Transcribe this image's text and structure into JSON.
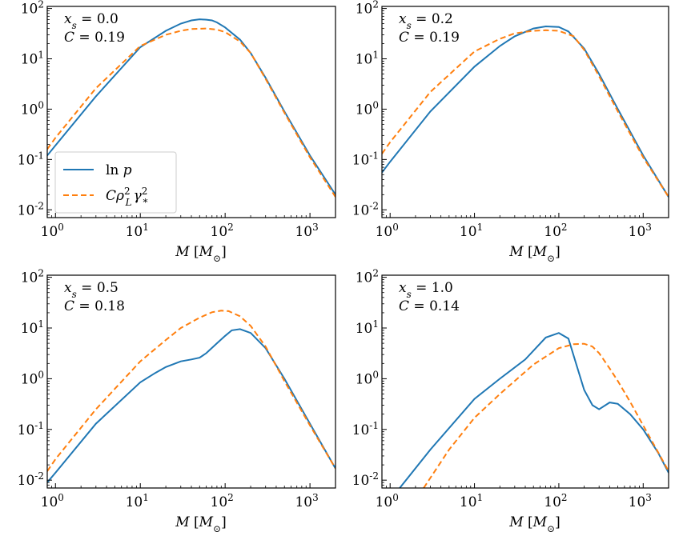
{
  "figure": {
    "legend": {
      "entries": [
        {
          "label": "ln p",
          "color": "#1f77b4",
          "style": "solid"
        },
        {
          "label": "Cρ_L²γ_*²",
          "color": "#ff7f0e",
          "style": "dashed"
        }
      ]
    }
  },
  "chart_data": [
    {
      "type": "line",
      "x_scale": "log",
      "y_scale": "log",
      "xlim": [
        0.8,
        2000
      ],
      "ylim": [
        0.007,
        110
      ],
      "xlabel": "M [M⊙]",
      "xticks": [
        {
          "v": 1,
          "l": "10",
          "e": "0"
        },
        {
          "v": 10,
          "l": "10",
          "e": "1"
        },
        {
          "v": 100,
          "l": "10",
          "e": "2"
        },
        {
          "v": 1000,
          "l": "10",
          "e": "3"
        }
      ],
      "yticks": [
        {
          "v": 0.01,
          "l": "10",
          "e": "-2"
        },
        {
          "v": 0.1,
          "l": "10",
          "e": "-1"
        },
        {
          "v": 1,
          "l": "10",
          "e": "0"
        },
        {
          "v": 10,
          "l": "10",
          "e": "1"
        },
        {
          "v": 100,
          "l": "10",
          "e": "2"
        }
      ],
      "annotations": [
        {
          "var": "x",
          "sub": "s",
          "text": " = 0.0"
        },
        {
          "var": "C",
          "sub": "",
          "text": " = 0.19"
        }
      ],
      "legend": "lower-left",
      "series": [
        {
          "name": "ln p",
          "color": "#1f77b4",
          "dash": false,
          "x": [
            0.8,
            1,
            3,
            10,
            20,
            30,
            40,
            50,
            60,
            70,
            80,
            100,
            150,
            200,
            300,
            500,
            1000,
            2000
          ],
          "y": [
            0.12,
            0.19,
            1.8,
            17,
            36,
            50,
            58,
            61,
            60,
            58,
            53,
            42,
            24,
            13,
            4.2,
            0.9,
            0.12,
            0.02
          ]
        },
        {
          "name": "Cρ_L²γ_*²",
          "color": "#ff7f0e",
          "dash": true,
          "x": [
            0.8,
            1,
            3,
            10,
            20,
            30,
            40,
            60,
            80,
            100,
            150,
            200,
            300,
            500,
            1000,
            2000
          ],
          "y": [
            0.16,
            0.27,
            2.6,
            18,
            30,
            36,
            39,
            40,
            38,
            34,
            22,
            13,
            4,
            0.85,
            0.11,
            0.018
          ]
        }
      ]
    },
    {
      "type": "line",
      "x_scale": "log",
      "y_scale": "log",
      "xlim": [
        0.8,
        2000
      ],
      "ylim": [
        0.007,
        110
      ],
      "xlabel": "M [M⊙]",
      "xticks": [
        {
          "v": 1,
          "l": "10",
          "e": "0"
        },
        {
          "v": 10,
          "l": "10",
          "e": "1"
        },
        {
          "v": 100,
          "l": "10",
          "e": "2"
        },
        {
          "v": 1000,
          "l": "10",
          "e": "3"
        }
      ],
      "yticks": [
        {
          "v": 0.01,
          "l": "10",
          "e": "-2"
        },
        {
          "v": 0.1,
          "l": "10",
          "e": "-1"
        },
        {
          "v": 1,
          "l": "10",
          "e": "0"
        },
        {
          "v": 10,
          "l": "10",
          "e": "1"
        },
        {
          "v": 100,
          "l": "10",
          "e": "2"
        }
      ],
      "annotations": [
        {
          "var": "x",
          "sub": "s",
          "text": " = 0.2"
        },
        {
          "var": "C",
          "sub": "",
          "text": " = 0.19"
        }
      ],
      "legend": "none",
      "series": [
        {
          "name": "ln p",
          "color": "#1f77b4",
          "dash": false,
          "x": [
            0.8,
            1,
            3,
            10,
            20,
            30,
            50,
            70,
            100,
            130,
            200,
            300,
            500,
            1000,
            2000
          ],
          "y": [
            0.055,
            0.09,
            0.9,
            7,
            18,
            28,
            40,
            44,
            43,
            35,
            16,
            5,
            1.0,
            0.12,
            0.018
          ]
        },
        {
          "name": "Cρ_L²γ_*²",
          "color": "#ff7f0e",
          "dash": true,
          "x": [
            0.8,
            1,
            3,
            10,
            20,
            30,
            50,
            70,
            100,
            150,
            200,
            300,
            500,
            1000,
            2000
          ],
          "y": [
            0.13,
            0.22,
            2.2,
            14,
            25,
            32,
            36,
            37,
            36,
            28,
            15,
            4.5,
            0.9,
            0.11,
            0.018
          ]
        }
      ]
    },
    {
      "type": "line",
      "x_scale": "log",
      "y_scale": "log",
      "xlim": [
        0.8,
        2000
      ],
      "ylim": [
        0.007,
        110
      ],
      "xlabel": "M [M⊙]",
      "xticks": [
        {
          "v": 1,
          "l": "10",
          "e": "0"
        },
        {
          "v": 10,
          "l": "10",
          "e": "1"
        },
        {
          "v": 100,
          "l": "10",
          "e": "2"
        },
        {
          "v": 1000,
          "l": "10",
          "e": "3"
        }
      ],
      "yticks": [
        {
          "v": 0.01,
          "l": "10",
          "e": "-2"
        },
        {
          "v": 0.1,
          "l": "10",
          "e": "-1"
        },
        {
          "v": 1,
          "l": "10",
          "e": "0"
        },
        {
          "v": 10,
          "l": "10",
          "e": "1"
        },
        {
          "v": 100,
          "l": "10",
          "e": "2"
        }
      ],
      "annotations": [
        {
          "var": "x",
          "sub": "s",
          "text": " = 0.5"
        },
        {
          "var": "C",
          "sub": "",
          "text": " = 0.18"
        }
      ],
      "legend": "none",
      "series": [
        {
          "name": "ln p",
          "color": "#1f77b4",
          "dash": false,
          "x": [
            0.8,
            1,
            3,
            10,
            15,
            20,
            30,
            40,
            50,
            60,
            80,
            100,
            120,
            150,
            200,
            300,
            500,
            1000,
            2000
          ],
          "y": [
            0.009,
            0.014,
            0.13,
            0.85,
            1.3,
            1.7,
            2.2,
            2.4,
            2.6,
            3.2,
            5,
            7,
            9,
            9.5,
            8,
            4,
            1.0,
            0.13,
            0.017
          ]
        },
        {
          "name": "Cρ_L²γ_*²",
          "color": "#ff7f0e",
          "dash": true,
          "x": [
            0.8,
            1,
            3,
            10,
            20,
            30,
            50,
            70,
            90,
            110,
            150,
            200,
            300,
            500,
            1000,
            2000
          ],
          "y": [
            0.015,
            0.026,
            0.25,
            2.2,
            5.8,
            10,
            16,
            20.5,
            22,
            21.5,
            17,
            11,
            4.3,
            0.9,
            0.12,
            0.017
          ]
        }
      ]
    },
    {
      "type": "line",
      "x_scale": "log",
      "y_scale": "log",
      "xlim": [
        0.8,
        2000
      ],
      "ylim": [
        0.007,
        110
      ],
      "xlabel": "M [M⊙]",
      "xticks": [
        {
          "v": 1,
          "l": "10",
          "e": "0"
        },
        {
          "v": 10,
          "l": "10",
          "e": "1"
        },
        {
          "v": 100,
          "l": "10",
          "e": "2"
        },
        {
          "v": 1000,
          "l": "10",
          "e": "3"
        }
      ],
      "yticks": [
        {
          "v": 0.01,
          "l": "10",
          "e": "-2"
        },
        {
          "v": 0.1,
          "l": "10",
          "e": "-1"
        },
        {
          "v": 1,
          "l": "10",
          "e": "0"
        },
        {
          "v": 10,
          "l": "10",
          "e": "1"
        },
        {
          "v": 100,
          "l": "10",
          "e": "2"
        }
      ],
      "annotations": [
        {
          "var": "x",
          "sub": "s",
          "text": " = 1.0"
        },
        {
          "var": "C",
          "sub": "",
          "text": " = 0.14"
        }
      ],
      "legend": "none",
      "series": [
        {
          "name": "ln p",
          "color": "#1f77b4",
          "dash": false,
          "x": [
            1.3,
            3,
            10,
            20,
            40,
            70,
            100,
            130,
            160,
            200,
            250,
            300,
            400,
            500,
            700,
            1000,
            1500,
            2000
          ],
          "y": [
            0.007,
            0.04,
            0.4,
            1.0,
            2.4,
            6.5,
            8,
            6.2,
            2.0,
            0.6,
            0.3,
            0.25,
            0.34,
            0.32,
            0.2,
            0.1,
            0.035,
            0.014
          ]
        },
        {
          "name": "Cρ_L²γ_*²",
          "color": "#ff7f0e",
          "dash": true,
          "x": [
            2.5,
            5,
            10,
            20,
            50,
            100,
            150,
            200,
            250,
            300,
            400,
            500,
            700,
            1000,
            2000
          ],
          "y": [
            0.007,
            0.04,
            0.17,
            0.5,
            1.9,
            4.0,
            4.8,
            4.9,
            4.3,
            3.2,
            1.6,
            0.9,
            0.35,
            0.12,
            0.015
          ]
        }
      ]
    }
  ]
}
